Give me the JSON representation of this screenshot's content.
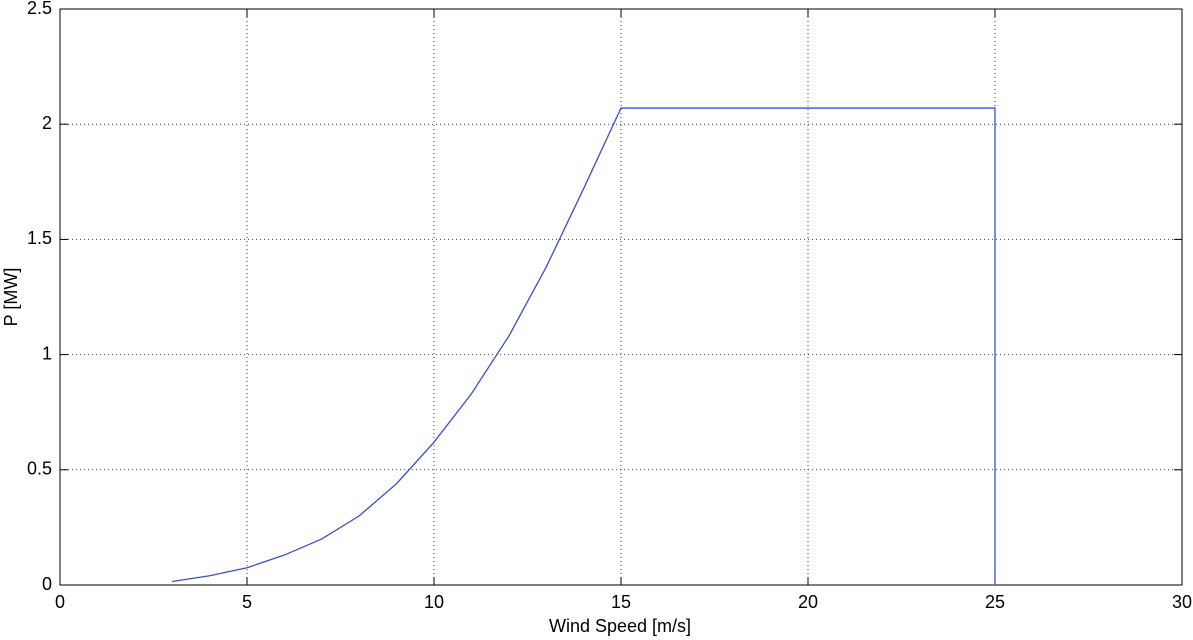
{
  "chart_data": {
    "type": "line",
    "x_label": "Wind Speed [m/s]",
    "y_label": "P [MW]",
    "x": [
      3,
      4,
      5,
      6,
      7,
      8,
      9,
      10,
      11,
      12,
      13,
      14,
      15,
      25,
      25
    ],
    "values": [
      0.015,
      0.04,
      0.075,
      0.13,
      0.2,
      0.3,
      0.44,
      0.62,
      0.83,
      1.08,
      1.38,
      1.72,
      2.07,
      2.07,
      0
    ],
    "color": "#3a4fc4",
    "xlim": [
      0,
      30
    ],
    "xticks": [
      0,
      5,
      10,
      15,
      20,
      25,
      30
    ],
    "ylim": [
      0,
      2.5
    ],
    "yticks": [
      0,
      0.5,
      1,
      1.5,
      2,
      2.5
    ],
    "grid": true
  }
}
